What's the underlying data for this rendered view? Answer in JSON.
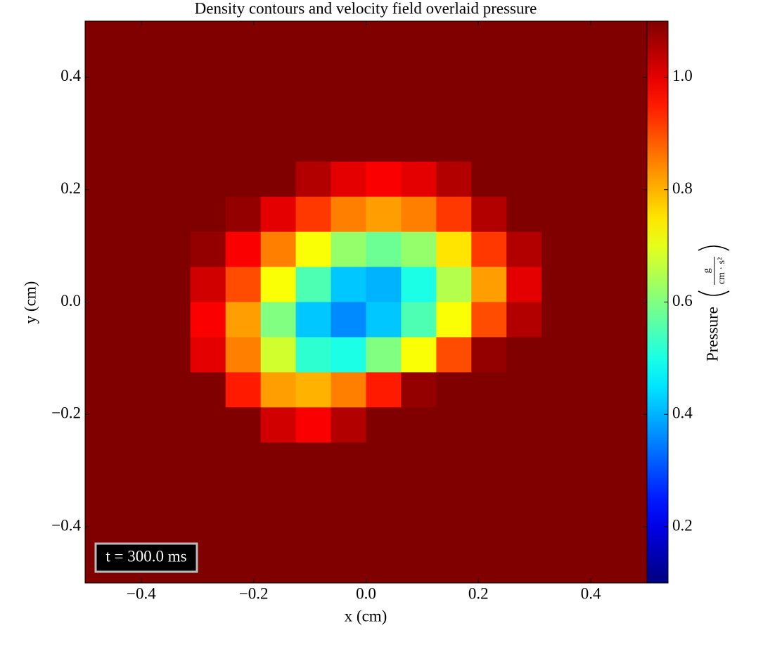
{
  "chart_data": {
    "type": "heatmap",
    "title": "Density contours and velocity field overlaid pressure",
    "xlabel": "x  (cm)",
    "ylabel": "y  (cm)",
    "xlim": [
      -0.5,
      0.5
    ],
    "ylim": [
      -0.5,
      0.5
    ],
    "xticks": [
      {
        "value": -0.4,
        "label": "−0.4"
      },
      {
        "value": -0.2,
        "label": "−0.2"
      },
      {
        "value": 0.0,
        "label": "0.0"
      },
      0.2,
      0.4
    ],
    "yticks": [
      {
        "value": -0.4,
        "label": "−0.4"
      },
      {
        "value": -0.2,
        "label": "−0.2"
      },
      {
        "value": 0.0,
        "label": "0.0"
      },
      0.2,
      0.4
    ],
    "colormap": "jet",
    "clim": [
      0.1,
      1.1
    ],
    "cticks": [
      0.2,
      0.4,
      0.6,
      0.8,
      {
        "value": 1.0,
        "label": "1.0"
      }
    ],
    "colorbar_label": "Pressure",
    "colorbar_unit": {
      "numerator": "g",
      "denominator": "cm · s²"
    },
    "annotation": "t = 300.0 ms",
    "pressure": [
      [
        1.1,
        1.1,
        1.1,
        1.1,
        1.1,
        1.1,
        1.1,
        1.1,
        1.1,
        1.1,
        1.1,
        1.1,
        1.1,
        1.1,
        1.1,
        1.1
      ],
      [
        1.1,
        1.1,
        1.1,
        1.1,
        1.1,
        1.1,
        1.1,
        1.1,
        1.1,
        1.1,
        1.1,
        1.1,
        1.1,
        1.1,
        1.1,
        1.1
      ],
      [
        1.1,
        1.1,
        1.1,
        1.1,
        1.1,
        1.1,
        1.1,
        1.1,
        1.1,
        1.1,
        1.1,
        1.1,
        1.1,
        1.1,
        1.1,
        1.1
      ],
      [
        1.1,
        1.1,
        1.1,
        1.1,
        1.1,
        1.1,
        1.1,
        1.1,
        1.1,
        1.1,
        1.1,
        1.1,
        1.1,
        1.1,
        1.1,
        1.1
      ],
      [
        1.1,
        1.1,
        1.1,
        1.1,
        1.1,
        1.1,
        1.05,
        1.0,
        0.98,
        1.0,
        1.05,
        1.1,
        1.1,
        1.1,
        1.1,
        1.1
      ],
      [
        1.1,
        1.1,
        1.1,
        1.1,
        1.08,
        1.0,
        0.92,
        0.85,
        0.82,
        0.85,
        0.92,
        1.05,
        1.1,
        1.1,
        1.1,
        1.1
      ],
      [
        1.1,
        1.1,
        1.1,
        1.08,
        0.98,
        0.85,
        0.72,
        0.62,
        0.58,
        0.62,
        0.75,
        0.92,
        1.05,
        1.1,
        1.1,
        1.1
      ],
      [
        1.1,
        1.1,
        1.1,
        1.02,
        0.9,
        0.72,
        0.55,
        0.42,
        0.4,
        0.5,
        0.65,
        0.82,
        1.0,
        1.1,
        1.1,
        1.1
      ],
      [
        1.1,
        1.1,
        1.1,
        0.98,
        0.82,
        0.6,
        0.42,
        0.36,
        0.42,
        0.55,
        0.72,
        0.9,
        1.05,
        1.1,
        1.1,
        1.1
      ],
      [
        1.1,
        1.1,
        1.1,
        1.0,
        0.85,
        0.68,
        0.52,
        0.5,
        0.6,
        0.72,
        0.9,
        1.08,
        1.1,
        1.1,
        1.1,
        1.1
      ],
      [
        1.1,
        1.1,
        1.1,
        1.1,
        0.95,
        0.82,
        0.8,
        0.85,
        0.95,
        1.08,
        1.1,
        1.1,
        1.1,
        1.1,
        1.1,
        1.1
      ],
      [
        1.1,
        1.1,
        1.1,
        1.1,
        1.1,
        1.02,
        0.98,
        1.05,
        1.1,
        1.1,
        1.1,
        1.1,
        1.1,
        1.1,
        1.1,
        1.1
      ],
      [
        1.1,
        1.1,
        1.1,
        1.1,
        1.1,
        1.1,
        1.1,
        1.1,
        1.1,
        1.1,
        1.1,
        1.1,
        1.1,
        1.1,
        1.1,
        1.1
      ],
      [
        1.1,
        1.1,
        1.1,
        1.1,
        1.1,
        1.1,
        1.1,
        1.1,
        1.1,
        1.1,
        1.1,
        1.1,
        1.1,
        1.1,
        1.1,
        1.1
      ],
      [
        1.1,
        1.1,
        1.1,
        1.1,
        1.1,
        1.1,
        1.1,
        1.1,
        1.1,
        1.1,
        1.1,
        1.1,
        1.1,
        1.1,
        1.1,
        1.1
      ],
      [
        1.1,
        1.1,
        1.1,
        1.1,
        1.1,
        1.1,
        1.1,
        1.1,
        1.1,
        1.1,
        1.1,
        1.1,
        1.1,
        1.1,
        1.1,
        1.1
      ]
    ]
  }
}
